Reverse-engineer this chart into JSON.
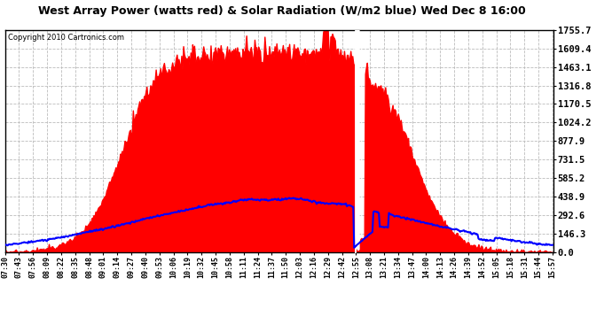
{
  "title": "West Array Power (watts red) & Solar Radiation (W/m2 blue) Wed Dec 8 16:00",
  "copyright": "Copyright 2010 Cartronics.com",
  "background_color": "#ffffff",
  "plot_bg_color": "#ffffff",
  "grid_color": "#aaaaaa",
  "y_max": 1755.7,
  "y_min": 0.0,
  "y_ticks": [
    0.0,
    146.3,
    292.6,
    438.9,
    585.2,
    731.5,
    877.9,
    1024.2,
    1170.5,
    1316.8,
    1463.1,
    1609.4,
    1755.7
  ],
  "x_labels": [
    "07:30",
    "07:43",
    "07:56",
    "08:09",
    "08:22",
    "08:35",
    "08:48",
    "09:01",
    "09:14",
    "09:27",
    "09:40",
    "09:53",
    "10:06",
    "10:19",
    "10:32",
    "10:45",
    "10:58",
    "11:11",
    "11:24",
    "11:37",
    "11:50",
    "12:03",
    "12:16",
    "12:29",
    "12:42",
    "12:55",
    "13:08",
    "13:21",
    "13:34",
    "13:47",
    "14:00",
    "14:13",
    "14:26",
    "14:39",
    "14:52",
    "15:05",
    "15:18",
    "15:31",
    "15:44",
    "15:57"
  ],
  "red_color": "#ff0000",
  "blue_color": "#0000ff"
}
